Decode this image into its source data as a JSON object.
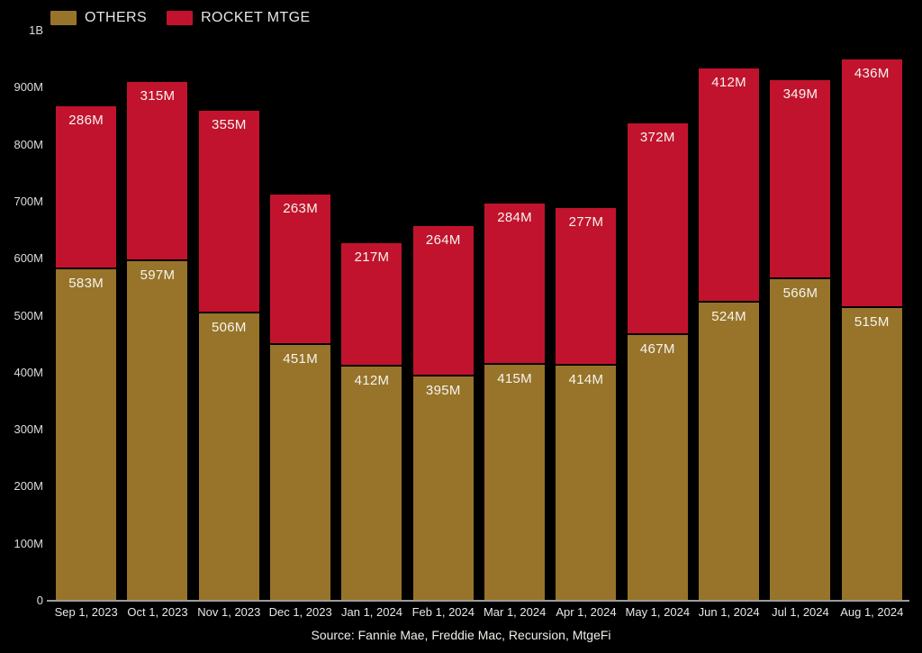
{
  "colors": {
    "background": "#000000",
    "others": "#97742A",
    "rocket": "#C1132D",
    "axis_line": "#9B9B9B",
    "tick_label": "#DCDCDC",
    "bar_label": "#F7F4EF",
    "legend_label": "#E8E6E2"
  },
  "legend": {
    "items": [
      {
        "label": "OTHERS",
        "color": "#97742A"
      },
      {
        "label": "ROCKET MTGE",
        "color": "#C1132D"
      }
    ]
  },
  "chart_data": {
    "type": "bar",
    "stacked": true,
    "title": "",
    "xlabel": "",
    "ylabel": "",
    "grid": false,
    "legend_position": "top-left",
    "categories": [
      "Sep 1, 2023",
      "Oct 1, 2023",
      "Nov 1, 2023",
      "Dec 1, 2023",
      "Jan 1, 2024",
      "Feb 1, 2024",
      "Mar 1, 2024",
      "Apr 1, 2024",
      "May 1, 2024",
      "Jun 1, 2024",
      "Jul 1, 2024",
      "Aug 1, 2024"
    ],
    "series": [
      {
        "name": "OTHERS",
        "color": "#97742A",
        "values": [
          583,
          597,
          506,
          451,
          412,
          395,
          415,
          414,
          467,
          524,
          566,
          515
        ],
        "labels": [
          "583M",
          "597M",
          "506M",
          "451M",
          "412M",
          "395M",
          "415M",
          "414M",
          "467M",
          "524M",
          "566M",
          "515M"
        ]
      },
      {
        "name": "ROCKET MTGE",
        "color": "#C1132D",
        "values": [
          286,
          315,
          355,
          263,
          217,
          264,
          284,
          277,
          372,
          412,
          349,
          436
        ],
        "labels": [
          "286M",
          "315M",
          "355M",
          "263M",
          "217M",
          "264M",
          "284M",
          "277M",
          "372M",
          "412M",
          "349M",
          "436M"
        ]
      }
    ],
    "unit_suffix": "M",
    "ylim": [
      0,
      1000
    ],
    "y_tick_values": [
      0,
      100,
      200,
      300,
      400,
      500,
      600,
      700,
      800,
      900,
      1000
    ],
    "y_tick_labels": [
      "0",
      "100M",
      "200M",
      "300M",
      "400M",
      "500M",
      "600M",
      "700M",
      "800M",
      "900M",
      "1B"
    ],
    "source_note": "Source: Fannie Mae, Freddie Mac, Recursion, MtgeFi"
  }
}
